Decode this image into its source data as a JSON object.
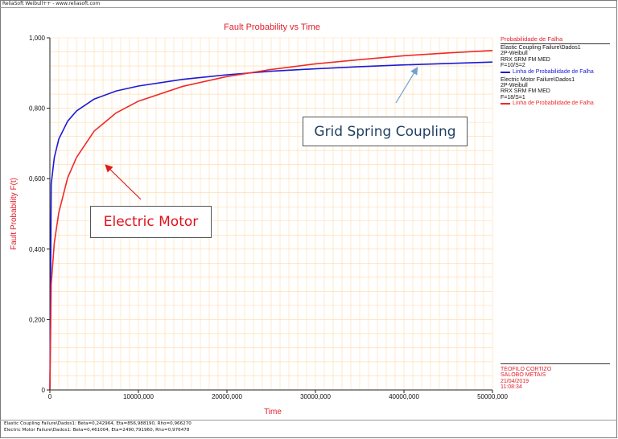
{
  "window": {
    "title": "ReliaSoft Weibull++ - www.reliasoft.com"
  },
  "colors": {
    "accent": "#e0202a",
    "series_blue": "#1a1ad8",
    "series_red": "#ee2a2a",
    "grid": "#ffd9a8",
    "annotation_arrow_blue": "#6fa0d0"
  },
  "legend": {
    "header": "Probabilidade de Falha",
    "entries": [
      {
        "lines": [
          "Elastic Coupling Failure\\Dados1",
          "2P-Weibull",
          "RRX SRM FM MED",
          "F=10/S=2"
        ],
        "series_label": "Linha de Probabilidade de Falha",
        "color": "#1a1ad8"
      },
      {
        "lines": [
          "Electric Motor Failure\\Dados1",
          "2P-Weibull",
          "RRX SRM FM MED",
          "F=18/S=1"
        ],
        "series_label": "Linha de Probabilidade de Falha",
        "color": "#ee2a2a"
      }
    ]
  },
  "info": {
    "lines": [
      "TEOFILO CORTIZO",
      "SALOBO METAIS",
      "21/04/2019",
      "11:08:34"
    ]
  },
  "footer": {
    "lines": [
      "Elastic Coupling Failure\\Dados1: Beta=0,242964, Eta=856,988190, Rho=0,966270",
      "Electric Motor Failure\\Dados1: Beta=0,461004, Eta=2490,791960, Rho=0,976478"
    ]
  },
  "annotations": {
    "grid_spring": "Grid Spring Coupling",
    "electric_motor": "Electric Motor"
  },
  "chart_data": {
    "type": "line",
    "title": "Fault Probability vs Time",
    "xlabel": "Time",
    "ylabel": "Fault Probability F(t)",
    "xlim": [
      0,
      50000000
    ],
    "ylim": [
      0,
      1
    ],
    "x_ticks": [
      "0",
      "10000,000",
      "20000,000",
      "30000,000",
      "40000,000",
      "50000,000"
    ],
    "y_ticks": [
      "0",
      "0,200",
      "0,400",
      "0,600",
      "0,800",
      "1,000"
    ],
    "grid": true,
    "legend_position": "right",
    "series": [
      {
        "name": "Elastic Coupling Failure\\Dados1",
        "color": "#1a1ad8",
        "x": [
          0,
          150000,
          500000,
          1000000,
          2000000,
          3000000,
          5000000,
          7500000,
          10000000,
          15000000,
          20000000,
          25000000,
          30000000,
          35000000,
          40000000,
          45000000,
          50000000
        ],
        "y": [
          0,
          0.585,
          0.66,
          0.712,
          0.763,
          0.792,
          0.826,
          0.849,
          0.863,
          0.882,
          0.895,
          0.905,
          0.912,
          0.918,
          0.923,
          0.927,
          0.931
        ]
      },
      {
        "name": "Electric Motor Failure\\Dados1",
        "color": "#ee2a2a",
        "x": [
          0,
          150000,
          500000,
          1000000,
          2000000,
          3000000,
          5000000,
          7500000,
          10000000,
          15000000,
          20000000,
          25000000,
          30000000,
          35000000,
          40000000,
          45000000,
          50000000
        ],
        "y": [
          0,
          0.3,
          0.418,
          0.503,
          0.602,
          0.66,
          0.735,
          0.787,
          0.82,
          0.862,
          0.89,
          0.91,
          0.926,
          0.938,
          0.949,
          0.957,
          0.964
        ]
      }
    ]
  }
}
